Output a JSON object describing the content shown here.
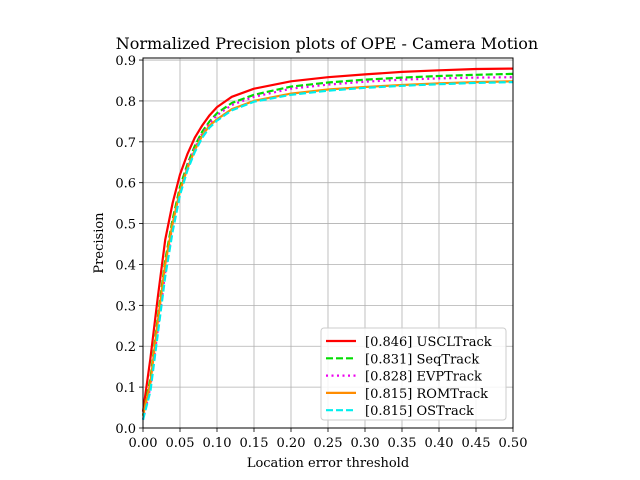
{
  "chart_data": {
    "type": "line",
    "title": "Normalized Precision plots of OPE - Camera Motion",
    "xlabel": "Location error threshold",
    "ylabel": "Precision",
    "xlim": [
      0.0,
      0.5
    ],
    "ylim": [
      0.0,
      0.905
    ],
    "xticks": [
      "0.00",
      "0.05",
      "0.10",
      "0.15",
      "0.20",
      "0.25",
      "0.30",
      "0.35",
      "0.40",
      "0.45",
      "0.50"
    ],
    "yticks": [
      "0.0",
      "0.1",
      "0.2",
      "0.3",
      "0.4",
      "0.5",
      "0.6",
      "0.7",
      "0.8",
      "0.9"
    ],
    "grid": true,
    "legend_position": "lower-right",
    "x": [
      0.0,
      0.01,
      0.02,
      0.03,
      0.04,
      0.05,
      0.06,
      0.07,
      0.08,
      0.09,
      0.1,
      0.12,
      0.15,
      0.2,
      0.25,
      0.3,
      0.35,
      0.4,
      0.45,
      0.5
    ],
    "series": [
      {
        "name": "[0.846] USCLTrack",
        "color": "#ff0000",
        "dash": "solid",
        "values": [
          0.04,
          0.17,
          0.32,
          0.46,
          0.55,
          0.62,
          0.67,
          0.71,
          0.74,
          0.765,
          0.785,
          0.81,
          0.83,
          0.848,
          0.858,
          0.865,
          0.871,
          0.875,
          0.878,
          0.879
        ]
      },
      {
        "name": "[0.831] SeqTrack",
        "color": "#00dd00",
        "dash": "dashed",
        "values": [
          0.03,
          0.12,
          0.27,
          0.41,
          0.51,
          0.59,
          0.645,
          0.69,
          0.725,
          0.75,
          0.77,
          0.795,
          0.815,
          0.835,
          0.845,
          0.852,
          0.857,
          0.861,
          0.864,
          0.866
        ]
      },
      {
        "name": "[0.828] EVPTrack",
        "color": "#ee00ee",
        "dash": "dotted",
        "values": [
          0.02,
          0.1,
          0.24,
          0.38,
          0.5,
          0.58,
          0.64,
          0.685,
          0.72,
          0.745,
          0.765,
          0.79,
          0.81,
          0.83,
          0.84,
          0.847,
          0.852,
          0.855,
          0.857,
          0.858
        ]
      },
      {
        "name": "[0.815] ROMTrack",
        "color": "#ff8c00",
        "dash": "solid",
        "values": [
          0.03,
          0.11,
          0.26,
          0.4,
          0.5,
          0.58,
          0.635,
          0.68,
          0.715,
          0.74,
          0.755,
          0.78,
          0.8,
          0.818,
          0.828,
          0.834,
          0.839,
          0.843,
          0.846,
          0.848
        ]
      },
      {
        "name": "[0.815] OSTrack",
        "color": "#00eeee",
        "dash": "dashed",
        "values": [
          0.02,
          0.09,
          0.23,
          0.37,
          0.48,
          0.57,
          0.63,
          0.675,
          0.71,
          0.735,
          0.752,
          0.777,
          0.798,
          0.815,
          0.825,
          0.832,
          0.837,
          0.841,
          0.844,
          0.846
        ]
      }
    ]
  }
}
